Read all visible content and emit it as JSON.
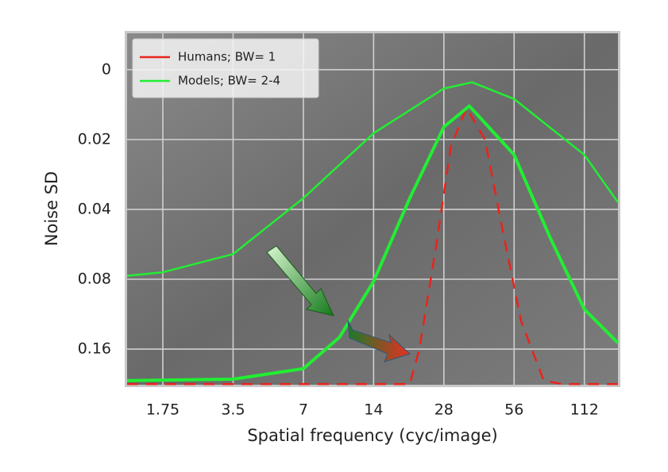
{
  "chart_data": {
    "type": "line",
    "xlabel": "Spatial frequency (cyc/image)",
    "ylabel": "Noise SD",
    "xscale": "log",
    "xlim": [
      1.23,
      156
    ],
    "xticks": [
      1.75,
      3.5,
      7,
      14,
      28,
      56,
      112
    ],
    "ylim": [
      -0.52,
      4.51
    ],
    "y_inverted": true,
    "yticks": [
      0,
      {
        "value": 1,
        "label": "0.02"
      },
      {
        "value": 2,
        "label": "0.04"
      },
      {
        "value": 3,
        "label": "0.08"
      },
      {
        "value": 4,
        "label": "0.16"
      }
    ],
    "grid": true,
    "legend": "upper left",
    "series": [
      {
        "name": "Humans; BW= 1",
        "color": "#e8241c",
        "dashed": true,
        "x": [
          1.23,
          14,
          20,
          22,
          26,
          30,
          35,
          42,
          50,
          60,
          75,
          90,
          156
        ],
        "values": [
          4.5,
          4.5,
          4.5,
          4.0,
          2.5,
          1.1,
          0.55,
          1.0,
          2.3,
          3.6,
          4.45,
          4.5,
          4.5
        ]
      },
      {
        "name": "Models; BW= 2-4",
        "color": "#22ee33",
        "x": [
          1.23,
          1.75,
          3.5,
          7,
          14,
          28,
          37,
          56,
          112,
          156
        ],
        "values": [
          2.95,
          2.9,
          2.64,
          1.84,
          0.91,
          0.27,
          0.18,
          0.42,
          1.22,
          1.9
        ]
      },
      {
        "color": "#22ee33",
        "x": [
          1.23,
          3.5,
          7,
          10,
          14,
          20,
          28,
          36,
          56,
          80,
          112,
          156
        ],
        "values": [
          4.45,
          4.43,
          4.28,
          3.83,
          3.03,
          1.84,
          0.82,
          0.52,
          1.22,
          2.41,
          3.43,
          3.91
        ]
      }
    ]
  }
}
